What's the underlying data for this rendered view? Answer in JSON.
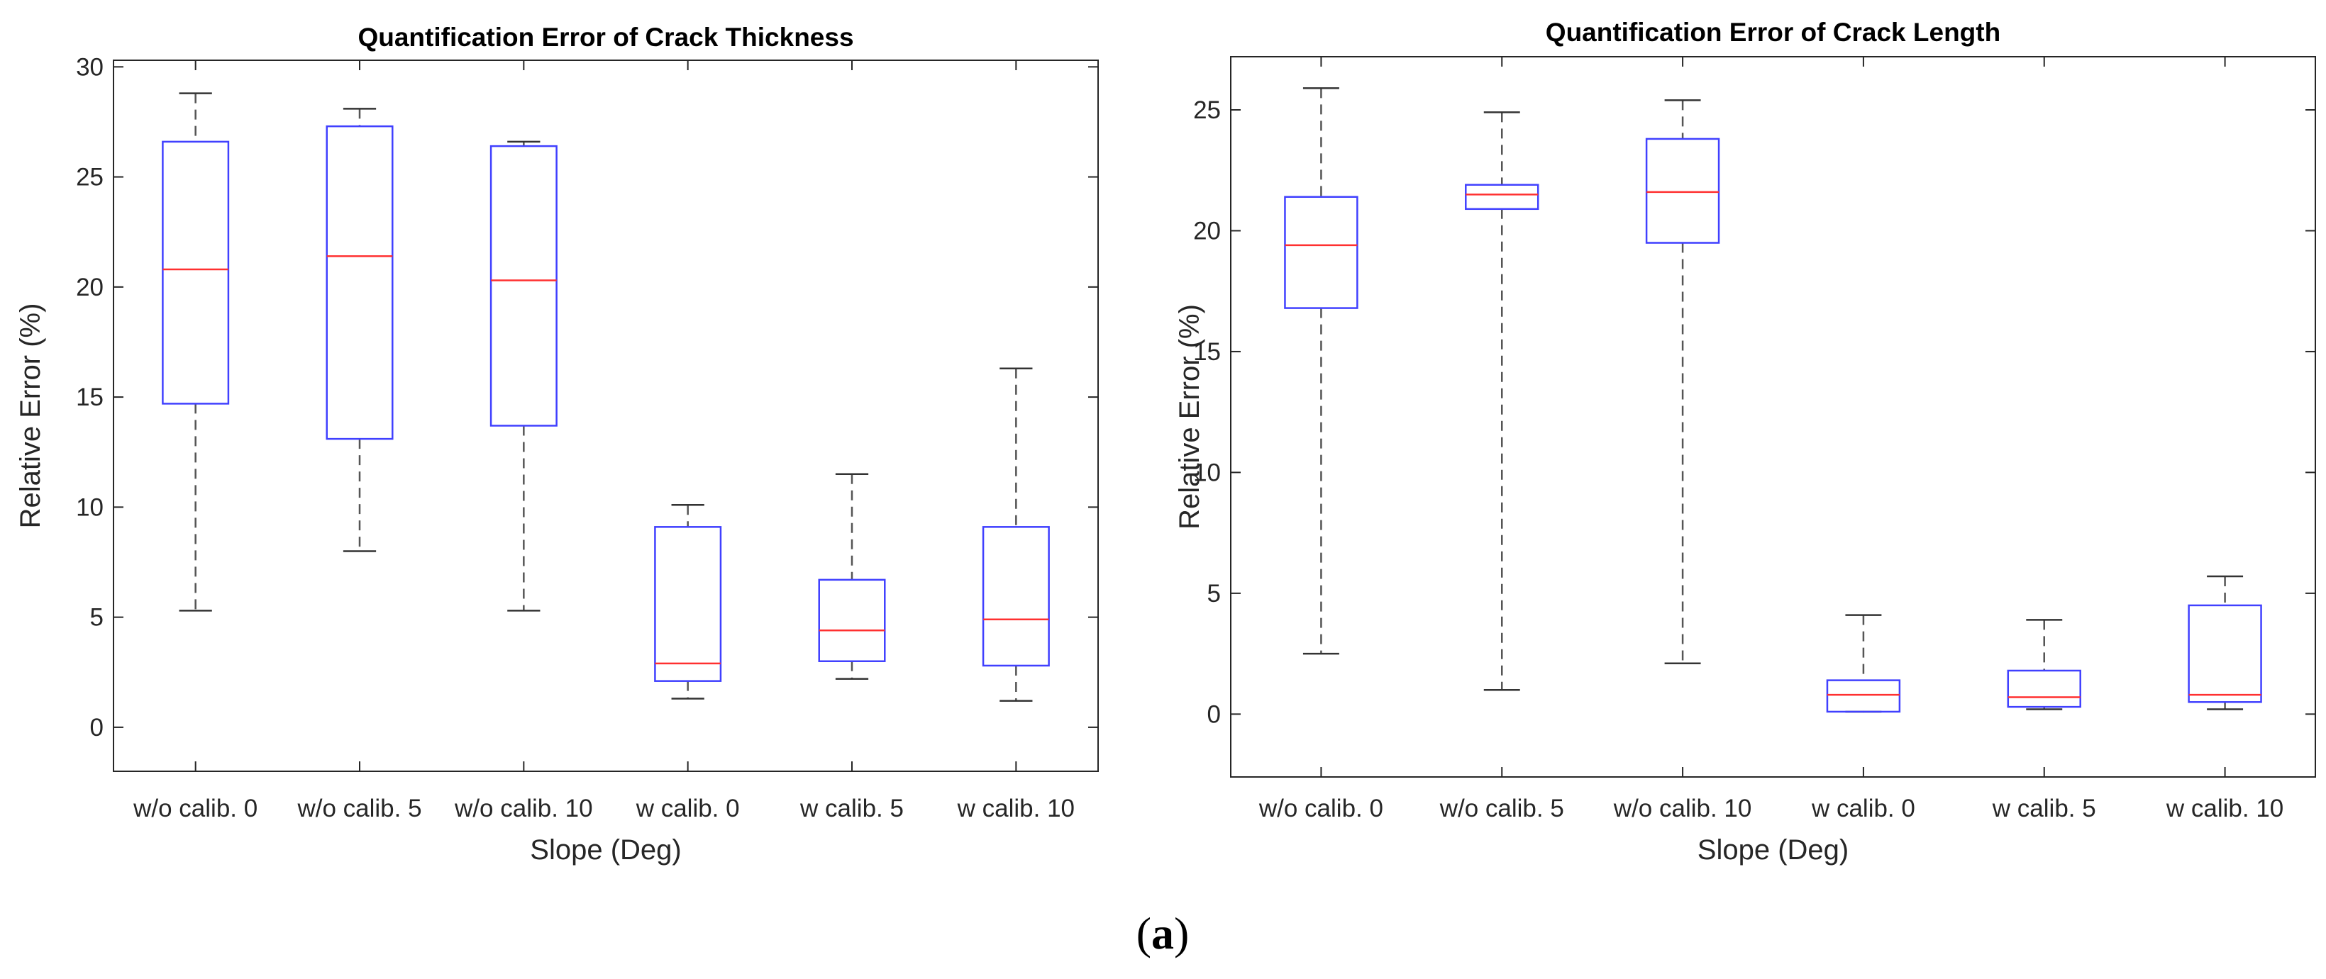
{
  "caption": {
    "open": "(",
    "letter": "a",
    "close": ")"
  },
  "colors": {
    "box": "#4040ff",
    "median": "#ff3030",
    "whisker": "#555555",
    "axis": "#262626"
  },
  "chart_data": [
    {
      "type": "boxplot",
      "title": "Quantification Error of Crack Thickness",
      "xlabel": "Slope (Deg)",
      "ylabel": "Relative Error (%)",
      "categories": [
        "w/o calib. 0",
        "w/o calib. 5",
        "w/o calib. 10",
        "w calib. 0",
        "w calib. 5",
        "w calib. 10"
      ],
      "ylim": [
        -2,
        30.3
      ],
      "yticks": [
        0,
        5,
        10,
        15,
        20,
        25,
        30
      ],
      "boxes": [
        {
          "min": 5.3,
          "q1": 14.7,
          "median": 20.8,
          "q3": 26.6,
          "max": 28.8
        },
        {
          "min": 8.0,
          "q1": 13.1,
          "median": 21.4,
          "q3": 27.3,
          "max": 28.1
        },
        {
          "min": 5.3,
          "q1": 13.7,
          "median": 20.3,
          "q3": 26.4,
          "max": 26.6
        },
        {
          "min": 1.3,
          "q1": 2.1,
          "median": 2.9,
          "q3": 9.1,
          "max": 10.1
        },
        {
          "min": 2.2,
          "q1": 3.0,
          "median": 4.4,
          "q3": 6.7,
          "max": 11.5
        },
        {
          "min": 1.2,
          "q1": 2.8,
          "median": 4.9,
          "q3": 9.1,
          "max": 16.3
        }
      ]
    },
    {
      "type": "boxplot",
      "title": "Quantification Error of Crack Length",
      "xlabel": "Slope (Deg)",
      "ylabel": "Relative Error (%)",
      "categories": [
        "w/o calib. 0",
        "w/o calib. 5",
        "w/o calib. 10",
        "w calib. 0",
        "w calib. 5",
        "w calib. 10"
      ],
      "ylim": [
        -2.6,
        27.2
      ],
      "yticks": [
        0,
        5,
        10,
        15,
        20,
        25
      ],
      "boxes": [
        {
          "min": 2.5,
          "q1": 16.8,
          "median": 19.4,
          "q3": 21.4,
          "max": 25.9
        },
        {
          "min": 1.0,
          "q1": 20.9,
          "median": 21.5,
          "q3": 21.9,
          "max": 24.9
        },
        {
          "min": 2.1,
          "q1": 19.5,
          "median": 21.6,
          "q3": 23.8,
          "max": 25.4
        },
        {
          "min": 0.1,
          "q1": 0.1,
          "median": 0.8,
          "q3": 1.4,
          "max": 4.1
        },
        {
          "min": 0.2,
          "q1": 0.3,
          "median": 0.7,
          "q3": 1.8,
          "max": 3.9
        },
        {
          "min": 0.2,
          "q1": 0.5,
          "median": 0.8,
          "q3": 4.5,
          "max": 5.7
        }
      ]
    }
  ]
}
